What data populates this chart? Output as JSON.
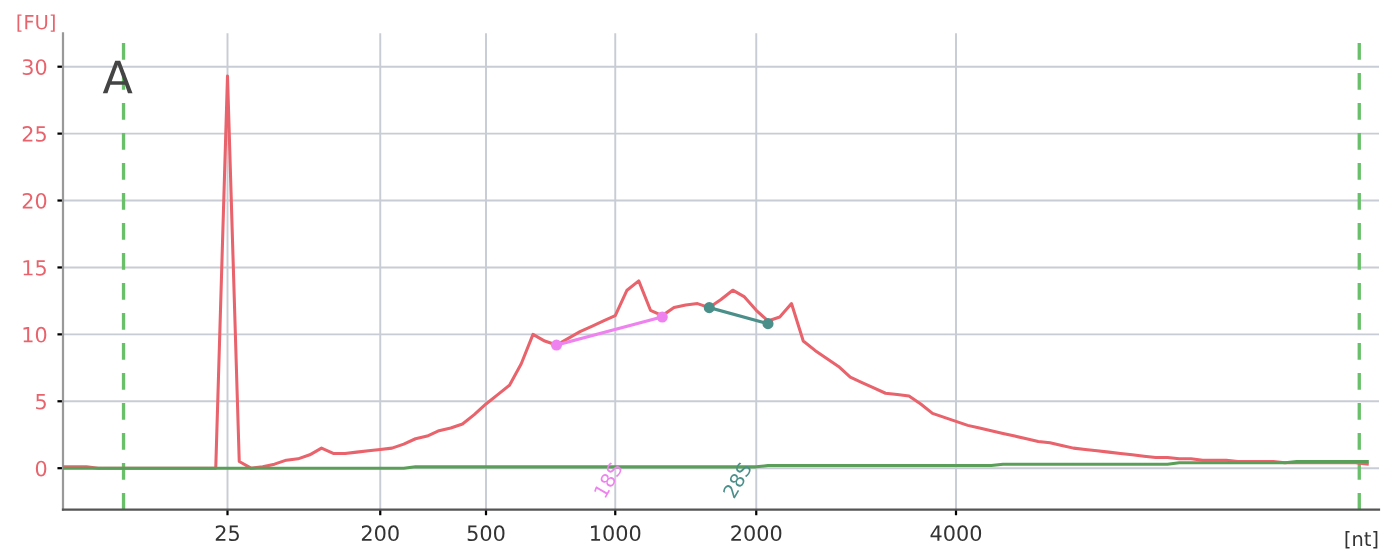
{
  "chart_data": {
    "type": "line",
    "xlabel": "[nt]",
    "ylabel": "[FU]",
    "categories": [
      null,
      null,
      null,
      null,
      null,
      null,
      null,
      null,
      null,
      null,
      null,
      null,
      null,
      null,
      "25",
      null,
      null,
      null,
      null,
      null,
      null,
      null,
      null,
      null,
      null,
      null,
      null,
      "200",
      null,
      null,
      null,
      null,
      null,
      null,
      null,
      null,
      "500",
      null,
      null,
      null,
      null,
      null,
      null,
      null,
      null,
      null,
      null,
      "1000",
      null,
      null,
      null,
      null,
      null,
      null,
      null,
      null,
      null,
      null,
      null,
      "2000",
      null,
      null,
      null,
      null,
      null,
      null,
      null,
      null,
      null,
      null,
      null,
      null,
      null,
      null,
      null,
      null,
      "4000",
      null,
      null,
      null,
      null,
      null,
      null,
      null,
      null,
      null,
      null,
      null,
      null,
      null,
      null,
      null,
      null,
      null,
      null,
      null,
      null,
      null,
      null,
      null,
      null,
      null,
      null,
      null,
      null,
      null,
      null,
      null,
      null,
      null,
      null,
      null
    ],
    "ylim": [
      -3.1,
      32.5
    ],
    "yticks": [
      0,
      5,
      10,
      15,
      20,
      25,
      30
    ],
    "grid": true,
    "legend": false,
    "marker": "none",
    "line_style": "solid",
    "series": [
      {
        "color": "#e8636b",
        "values": [
          0.1,
          0.1,
          0.1,
          0.0,
          0.0,
          0.0,
          0.0,
          0.0,
          0.0,
          0.0,
          0.0,
          0.0,
          0.0,
          0.0,
          29.3,
          0.5,
          0.0,
          0.1,
          0.3,
          0.6,
          0.7,
          1.0,
          1.5,
          1.1,
          1.1,
          1.2,
          1.3,
          1.4,
          1.5,
          1.8,
          2.2,
          2.4,
          2.8,
          3.0,
          3.3,
          4.0,
          4.8,
          5.5,
          6.2,
          7.8,
          10.0,
          9.5,
          9.2,
          9.7,
          10.2,
          10.6,
          11.0,
          11.4,
          13.3,
          14.0,
          11.8,
          11.4,
          12.0,
          12.2,
          12.3,
          12.0,
          12.6,
          13.3,
          12.8,
          11.8,
          11.0,
          11.3,
          12.3,
          9.5,
          8.8,
          8.2,
          7.6,
          6.8,
          6.4,
          6.0,
          5.6,
          5.5,
          5.4,
          4.8,
          4.1,
          3.8,
          3.5,
          3.2,
          3.0,
          2.8,
          2.6,
          2.4,
          2.2,
          2.0,
          1.9,
          1.7,
          1.5,
          1.4,
          1.3,
          1.2,
          1.1,
          1.0,
          0.9,
          0.8,
          0.8,
          0.7,
          0.7,
          0.6,
          0.6,
          0.6,
          0.5,
          0.5,
          0.5,
          0.5,
          0.4,
          0.4,
          0.4,
          0.4,
          0.4,
          0.4,
          0.4,
          0.3
        ]
      },
      {
        "color": "#5a9e5a",
        "values": [
          0.0,
          0.0,
          0.0,
          0.0,
          0.0,
          0.0,
          0.0,
          0.0,
          0.0,
          0.0,
          0.0,
          0.0,
          0.0,
          0.0,
          0.0,
          0.0,
          0.0,
          0.0,
          0.0,
          0.0,
          0.0,
          0.0,
          0.0,
          0.0,
          0.0,
          0.0,
          0.0,
          0.0,
          0.0,
          0.0,
          0.1,
          0.1,
          0.1,
          0.1,
          0.1,
          0.1,
          0.1,
          0.1,
          0.1,
          0.1,
          0.1,
          0.1,
          0.1,
          0.1,
          0.1,
          0.1,
          0.1,
          0.1,
          0.1,
          0.1,
          0.1,
          0.1,
          0.1,
          0.1,
          0.1,
          0.1,
          0.1,
          0.1,
          0.1,
          0.1,
          0.2,
          0.2,
          0.2,
          0.2,
          0.2,
          0.2,
          0.2,
          0.2,
          0.2,
          0.2,
          0.2,
          0.2,
          0.2,
          0.2,
          0.2,
          0.2,
          0.2,
          0.2,
          0.2,
          0.2,
          0.3,
          0.3,
          0.3,
          0.3,
          0.3,
          0.3,
          0.3,
          0.3,
          0.3,
          0.3,
          0.3,
          0.3,
          0.3,
          0.3,
          0.3,
          0.4,
          0.4,
          0.4,
          0.4,
          0.4,
          0.4,
          0.4,
          0.4,
          0.4,
          0.4,
          0.5,
          0.5,
          0.5,
          0.5,
          0.5,
          0.5,
          0.5
        ]
      },
      {
        "color": "#ee82ee",
        "marker": "circle",
        "values": [
          null,
          null,
          null,
          null,
          null,
          null,
          null,
          null,
          null,
          null,
          null,
          null,
          null,
          null,
          null,
          null,
          null,
          null,
          null,
          null,
          null,
          null,
          null,
          null,
          null,
          null,
          null,
          null,
          null,
          null,
          null,
          null,
          null,
          null,
          null,
          null,
          null,
          null,
          null,
          null,
          null,
          null,
          9.2,
          null,
          null,
          null,
          null,
          null,
          null,
          null,
          null,
          11.3,
          null,
          null,
          null,
          null,
          null,
          null,
          null,
          null,
          null,
          null,
          null,
          null,
          null,
          null,
          null,
          null,
          null,
          null,
          null,
          null,
          null,
          null,
          null,
          null,
          null,
          null,
          null,
          null,
          null,
          null,
          null,
          null,
          null,
          null,
          null,
          null,
          null,
          null,
          null,
          null,
          null,
          null,
          null,
          null,
          null,
          null,
          null,
          null,
          null,
          null,
          null,
          null,
          null,
          null,
          null,
          null,
          null,
          null,
          null,
          null
        ]
      },
      {
        "color": "#4a8f8a",
        "marker": "circle",
        "values": [
          null,
          null,
          null,
          null,
          null,
          null,
          null,
          null,
          null,
          null,
          null,
          null,
          null,
          null,
          null,
          null,
          null,
          null,
          null,
          null,
          null,
          null,
          null,
          null,
          null,
          null,
          null,
          null,
          null,
          null,
          null,
          null,
          null,
          null,
          null,
          null,
          null,
          null,
          null,
          null,
          null,
          null,
          null,
          null,
          null,
          null,
          null,
          null,
          null,
          null,
          null,
          null,
          null,
          null,
          null,
          12.0,
          null,
          null,
          null,
          null,
          10.8,
          null,
          null,
          null,
          null,
          null,
          null,
          null,
          null,
          null,
          null,
          null,
          null,
          null,
          null,
          null,
          null,
          null,
          null,
          null,
          null,
          null,
          null,
          null,
          null,
          null,
          null,
          null,
          null,
          null,
          null,
          null,
          null,
          null,
          null,
          null,
          null,
          null,
          null,
          null,
          null,
          null,
          null,
          null,
          null,
          null,
          null,
          null,
          null,
          null,
          null,
          null
        ]
      }
    ],
    "annotations": [
      "A",
      "18S",
      "28S"
    ]
  }
}
